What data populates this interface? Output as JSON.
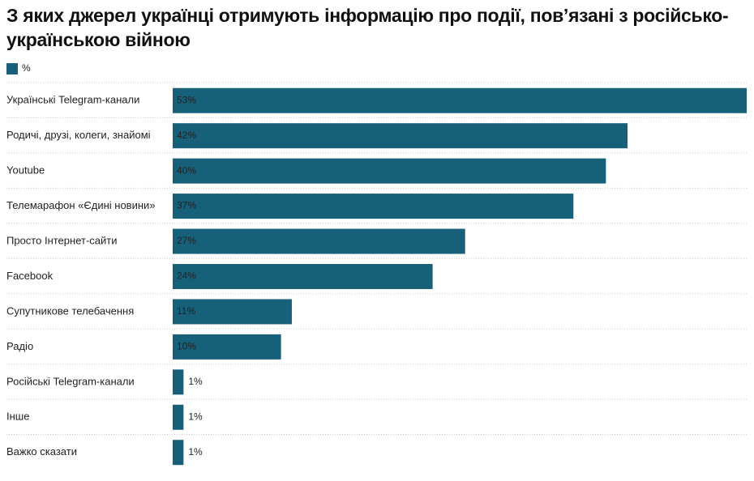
{
  "chart_data": {
    "type": "bar",
    "orientation": "horizontal",
    "title": "З яких джерел українці отримують інформацію про події, пов’язані з російсько-українською війною",
    "series": [
      {
        "name": "%",
        "color": "#17607a",
        "values": [
          53,
          42,
          40,
          37,
          27,
          24,
          11,
          10,
          1,
          1,
          1
        ],
        "value_labels": [
          "53%",
          "42%",
          "40%",
          "37%",
          "27%",
          "24%",
          "11%",
          "10%",
          "1%",
          "1%",
          "1%"
        ]
      }
    ],
    "categories": [
      "Українські Telegram-канали",
      "Родичі, друзі, колеги, знайомі",
      "Youtube",
      "Телемарафон «Єдині новини»",
      "Просто Інтернет-сайти",
      "Facebook",
      "Супутникове телебачення",
      "Радіо",
      "Російські Telegram-канали",
      "Інше",
      "Важко сказати"
    ]
  }
}
